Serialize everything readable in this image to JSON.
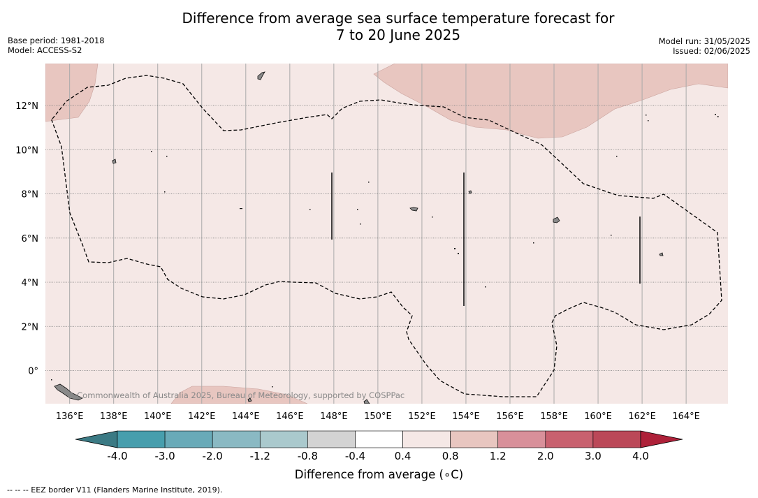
{
  "header": {
    "title_line1": "Difference from average sea surface temperature forecast for",
    "title_line2": "7 to 20 June 2025",
    "base_period": "Base period: 1981-2018",
    "model": "Model: ACCESS-S2",
    "model_run": "Model run: 31/05/2025",
    "issued": "Issued: 02/06/2025"
  },
  "map": {
    "longitude_labels": [
      "136°E",
      "138°E",
      "140°E",
      "142°E",
      "144°E",
      "146°E",
      "148°E",
      "150°E",
      "152°E",
      "154°E",
      "156°E",
      "158°E",
      "160°E",
      "162°E",
      "164°E"
    ],
    "longitude_values": [
      136,
      138,
      140,
      142,
      144,
      146,
      148,
      150,
      152,
      154,
      156,
      158,
      160,
      162,
      164
    ],
    "latitude_labels": [
      "12°N",
      "10°N",
      "8°N",
      "6°N",
      "4°N",
      "2°N",
      "0°"
    ],
    "latitude_values": [
      12,
      10,
      8,
      6,
      4,
      2,
      0
    ],
    "lon_range": [
      134.9,
      165.9
    ],
    "lat_range": [
      -1.5,
      13.9
    ],
    "attribution": "© Commonwealth of Australia 2025, Bureau of Meteorology, supported by COSPPac",
    "background_category": "0.4 to 0.8",
    "warmer_category": "0.8 to 1.2",
    "eez_border_style": "dashed"
  },
  "colorbar": {
    "tick_labels": [
      "-4.0",
      "-3.0",
      "-2.0",
      "-1.2",
      "-0.8",
      "-0.4",
      "0.4",
      "0.8",
      "1.2",
      "2.0",
      "3.0",
      "4.0"
    ],
    "colors": [
      "#479ead",
      "#69aab8",
      "#8ab9c3",
      "#aac9cd",
      "#d3d3d3",
      "#ffffff",
      "#f5e8e6",
      "#e8c6c0",
      "#d8909a",
      "#c8616f",
      "#bb4858"
    ],
    "extend_low_color": "#3b7a84",
    "extend_high_color": "#ae2139",
    "label": "Difference from average (°C)",
    "label_prefix": "Difference from average (",
    "label_unit": "∘C)"
  },
  "footnote": "--  --  -- EEZ border V11 (Flanders Marine Institute, 2019)."
}
